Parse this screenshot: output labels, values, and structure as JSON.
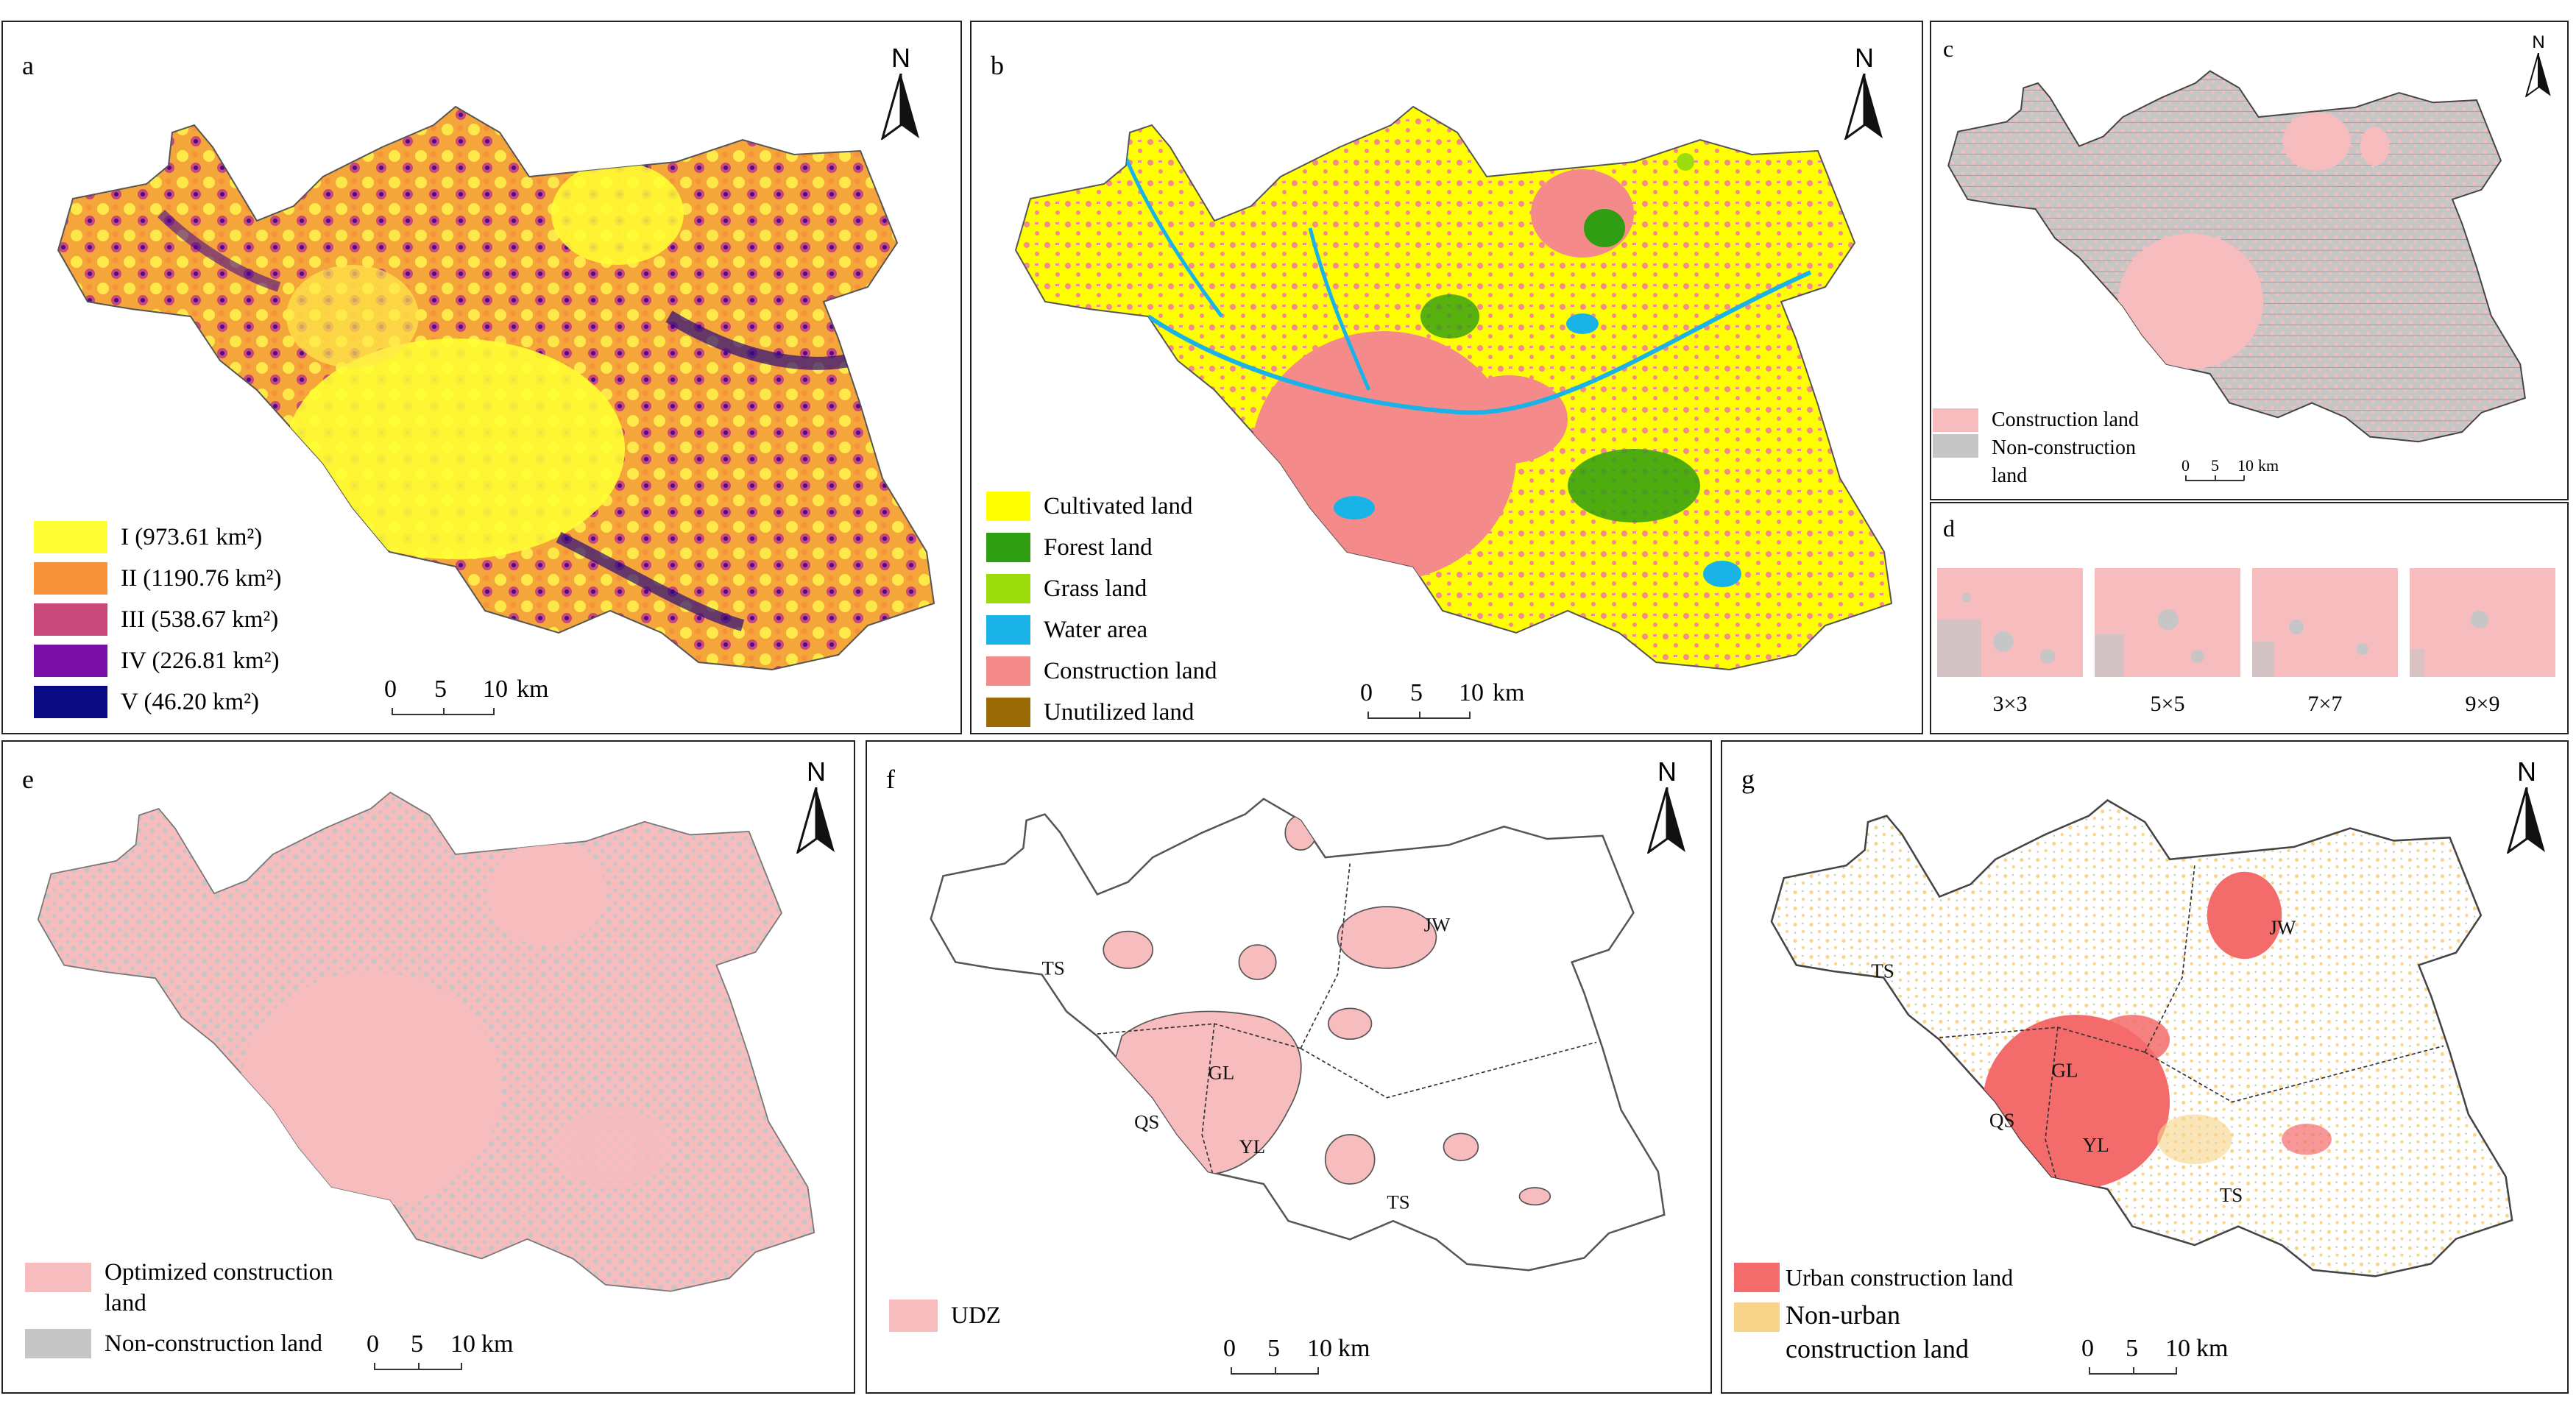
{
  "panels": {
    "a": {
      "label": "a",
      "north": "N",
      "legend": [
        {
          "label": "I (973.61 km²)",
          "color": "#ffff33"
        },
        {
          "label": "II (1190.76 km²)",
          "color": "#f8923a"
        },
        {
          "label": "III (538.67 km²)",
          "color": "#c9487a"
        },
        {
          "label": "IV (226.81 km²)",
          "color": "#7a10a8"
        },
        {
          "label": "V (46.20 km²)",
          "color": "#0a0a82"
        }
      ],
      "scale": {
        "t0": "0",
        "t1": "5",
        "t2": "10",
        "unit": "km"
      }
    },
    "b": {
      "label": "b",
      "north": "N",
      "legend": [
        {
          "label": "Cultivated land",
          "color": "#ffff00"
        },
        {
          "label": "Forest land",
          "color": "#2f9e12"
        },
        {
          "label": "Grass land",
          "color": "#9cdc0c"
        },
        {
          "label": "Water area",
          "color": "#1ab3e8"
        },
        {
          "label": "Construction land",
          "color": "#f58a8a"
        },
        {
          "label": "Unutilized land",
          "color": "#9a6a06"
        }
      ],
      "scale": {
        "t0": "0",
        "t1": "5",
        "t2": "10",
        "unit": "km"
      }
    },
    "c": {
      "label": "c",
      "north": "N",
      "legend": [
        {
          "label": "Construction land",
          "color": "#f6bcbe"
        },
        {
          "label": "Non-construction land",
          "color": "#c6c6c6"
        }
      ],
      "scale": {
        "t0": "0",
        "t1": "5",
        "t2": "10",
        "unit": "km"
      }
    },
    "d": {
      "label": "d",
      "windows": [
        "3×3",
        "5×5",
        "7×7",
        "9×9"
      ]
    },
    "e": {
      "label": "e",
      "north": "N",
      "legend": [
        {
          "label": "Optimized construction land",
          "color": "#f6bcbe"
        },
        {
          "label": "Non-construction land",
          "color": "#c6c6c6"
        }
      ],
      "scale": {
        "t0": "0",
        "t1": "5",
        "t2": "10",
        "unit": "km"
      }
    },
    "f": {
      "label": "f",
      "north": "N",
      "districts": [
        "TS",
        "JW",
        "GL",
        "QS",
        "YL",
        "TS"
      ],
      "legend": [
        {
          "label": "UDZ",
          "color": "#f6bcbe"
        }
      ],
      "scale": {
        "t0": "0",
        "t1": "5",
        "t2": "10",
        "unit": "km"
      }
    },
    "g": {
      "label": "g",
      "north": "N",
      "districts": [
        "TS",
        "JW",
        "GL",
        "QS",
        "YL",
        "TS"
      ],
      "legend": [
        {
          "label": "Urban construction land",
          "color": "#f46b6b"
        },
        {
          "label": "Non-urban construction land",
          "color": "#f7d48a"
        }
      ],
      "scale": {
        "t0": "0",
        "t1": "5",
        "t2": "10",
        "unit": "km"
      }
    }
  }
}
